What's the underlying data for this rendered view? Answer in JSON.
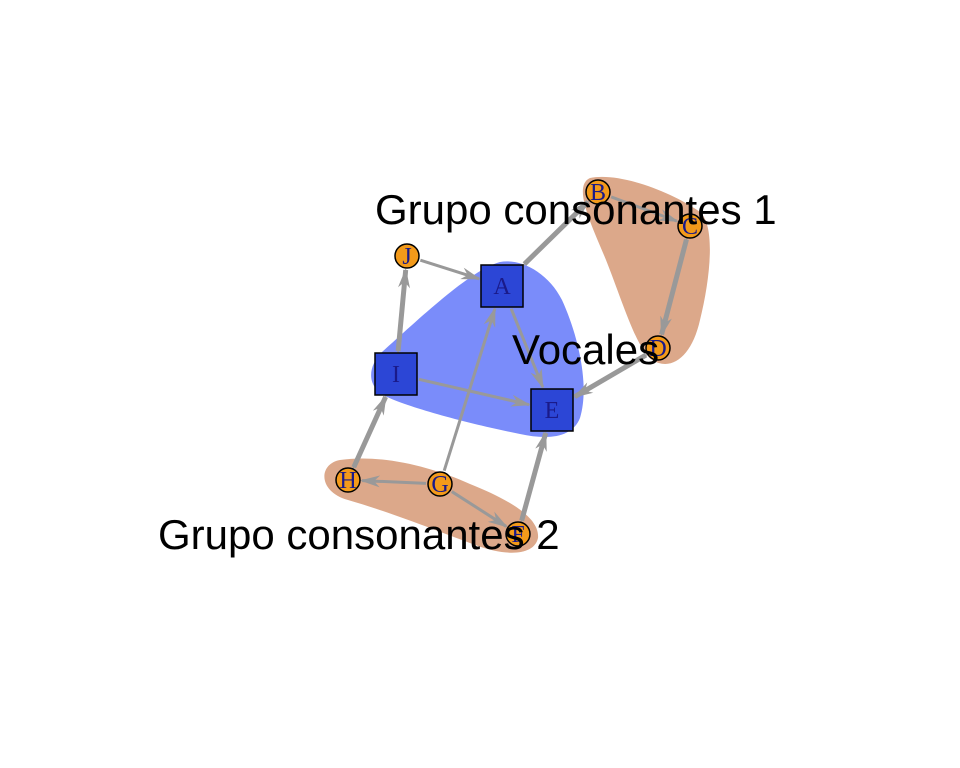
{
  "colors": {
    "vowel_fill": "#2c46d6",
    "consonant_fill": "#f39a1a",
    "node_text": "#1a1a8a",
    "edge": "#999999",
    "hull_vowels": "#7a8cfa",
    "hull_consonants": "#dca88a"
  },
  "groups": [
    {
      "id": "vocales",
      "label": "Vocales",
      "kind": "vowel"
    },
    {
      "id": "g1",
      "label": "Grupo consonantes 1",
      "kind": "consonant"
    },
    {
      "id": "g2",
      "label": "Grupo consonantes 2",
      "kind": "consonant"
    }
  ],
  "nodes": [
    {
      "id": "A",
      "label": "A",
      "shape": "square",
      "group": "vocales"
    },
    {
      "id": "E",
      "label": "E",
      "shape": "square",
      "group": "vocales"
    },
    {
      "id": "I",
      "label": "I",
      "shape": "square",
      "group": "vocales"
    },
    {
      "id": "B",
      "label": "B",
      "shape": "circle",
      "group": "g1"
    },
    {
      "id": "C",
      "label": "C",
      "shape": "circle",
      "group": "g1"
    },
    {
      "id": "D",
      "label": "D",
      "shape": "circle",
      "group": "g1"
    },
    {
      "id": "F",
      "label": "F",
      "shape": "circle",
      "group": "g2"
    },
    {
      "id": "G",
      "label": "G",
      "shape": "circle",
      "group": "g2"
    },
    {
      "id": "H",
      "label": "H",
      "shape": "circle",
      "group": "g2"
    },
    {
      "id": "J",
      "label": "J",
      "shape": "circle",
      "group": "none"
    }
  ],
  "edges": [
    {
      "from": "A",
      "to": "B",
      "bidirectional": true
    },
    {
      "from": "B",
      "to": "C",
      "bidirectional": false
    },
    {
      "from": "C",
      "to": "D",
      "bidirectional": true
    },
    {
      "from": "D",
      "to": "E",
      "bidirectional": true
    },
    {
      "from": "A",
      "to": "E",
      "bidirectional": false
    },
    {
      "from": "I",
      "to": "E",
      "bidirectional": false
    },
    {
      "from": "J",
      "to": "A",
      "bidirectional": false
    },
    {
      "from": "I",
      "to": "J",
      "bidirectional": true
    },
    {
      "from": "H",
      "to": "I",
      "bidirectional": true
    },
    {
      "from": "G",
      "to": "H",
      "bidirectional": false
    },
    {
      "from": "G",
      "to": "A",
      "bidirectional": false
    },
    {
      "from": "G",
      "to": "F",
      "bidirectional": false
    },
    {
      "from": "F",
      "to": "E",
      "bidirectional": true
    }
  ]
}
